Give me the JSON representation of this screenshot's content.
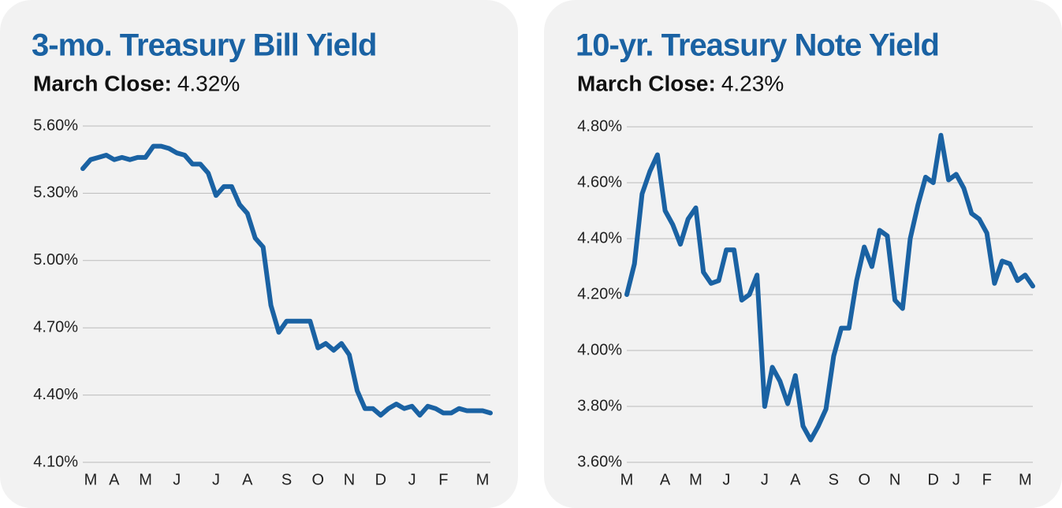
{
  "chart_data": [
    {
      "type": "line",
      "title": "3-mo. Treasury Bill Yield",
      "subtitle_label": "March Close:",
      "subtitle_value": "4.32%",
      "categories": [
        null,
        "M",
        null,
        null,
        "A",
        null,
        null,
        null,
        "M",
        null,
        null,
        null,
        "J",
        null,
        null,
        null,
        null,
        "J",
        null,
        null,
        null,
        "A",
        null,
        null,
        null,
        null,
        "S",
        null,
        null,
        null,
        "O",
        null,
        null,
        null,
        "N",
        null,
        null,
        null,
        "D",
        null,
        null,
        null,
        "J",
        null,
        null,
        null,
        "F",
        null,
        null,
        null,
        null,
        "M",
        null
      ],
      "series": [
        {
          "name": "3-mo. Treasury Bill Yield",
          "color": "#1a62a3",
          "values": [
            5.41,
            5.45,
            5.46,
            5.47,
            5.45,
            5.46,
            5.45,
            5.46,
            5.46,
            5.51,
            5.51,
            5.5,
            5.48,
            5.47,
            5.43,
            5.43,
            5.39,
            5.29,
            5.33,
            5.33,
            5.25,
            5.21,
            5.1,
            5.06,
            4.8,
            4.68,
            4.73,
            4.73,
            4.73,
            4.73,
            4.61,
            4.63,
            4.6,
            4.63,
            4.58,
            4.42,
            4.34,
            4.34,
            4.31,
            4.34,
            4.36,
            4.34,
            4.35,
            4.31,
            4.35,
            4.34,
            4.32,
            4.32,
            4.34,
            4.33,
            4.33,
            4.33,
            4.32
          ]
        }
      ],
      "ylim": [
        4.1,
        5.6
      ],
      "yticks": [
        {
          "value": 4.1,
          "label": "4.10%"
        },
        {
          "value": 4.4,
          "label": "4.40%"
        },
        {
          "value": 4.7,
          "label": "4.70%"
        },
        {
          "value": 5.0,
          "label": "5.00%"
        },
        {
          "value": 5.3,
          "label": "5.30%"
        },
        {
          "value": 5.6,
          "label": "5.60%"
        }
      ],
      "grid": true
    },
    {
      "type": "line",
      "title": "10-yr. Treasury Note Yield",
      "subtitle_label": "March Close:",
      "subtitle_value": "4.23%",
      "categories": [
        "M",
        null,
        null,
        null,
        null,
        "A",
        null,
        null,
        null,
        "M",
        null,
        null,
        null,
        "J",
        null,
        null,
        null,
        null,
        "J",
        null,
        null,
        null,
        "A",
        null,
        null,
        null,
        null,
        "S",
        null,
        null,
        null,
        "O",
        null,
        null,
        null,
        "N",
        null,
        null,
        null,
        null,
        "D",
        null,
        null,
        "J",
        null,
        null,
        null,
        "F",
        null,
        null,
        null,
        null,
        "M",
        null
      ],
      "series": [
        {
          "name": "10-yr. Treasury Note Yield",
          "color": "#1a62a3",
          "values": [
            4.2,
            4.31,
            4.56,
            4.64,
            4.7,
            4.5,
            4.45,
            4.38,
            4.47,
            4.51,
            4.28,
            4.24,
            4.25,
            4.36,
            4.36,
            4.18,
            4.2,
            4.27,
            3.8,
            3.94,
            3.89,
            3.81,
            3.91,
            3.73,
            3.68,
            3.73,
            3.79,
            3.98,
            4.08,
            4.08,
            4.25,
            4.37,
            4.3,
            4.43,
            4.41,
            4.18,
            4.15,
            4.4,
            4.52,
            4.62,
            4.6,
            4.77,
            4.61,
            4.63,
            4.58,
            4.49,
            4.47,
            4.42,
            4.24,
            4.32,
            4.31,
            4.25,
            4.27,
            4.23
          ]
        }
      ],
      "ylim": [
        3.6,
        4.8
      ],
      "yticks": [
        {
          "value": 3.6,
          "label": "3.60%"
        },
        {
          "value": 3.8,
          "label": "3.80%"
        },
        {
          "value": 4.0,
          "label": "4.00%"
        },
        {
          "value": 4.2,
          "label": "4.20%"
        },
        {
          "value": 4.4,
          "label": "4.40%"
        },
        {
          "value": 4.6,
          "label": "4.60%"
        },
        {
          "value": 4.8,
          "label": "4.80%"
        }
      ],
      "grid": true
    }
  ]
}
